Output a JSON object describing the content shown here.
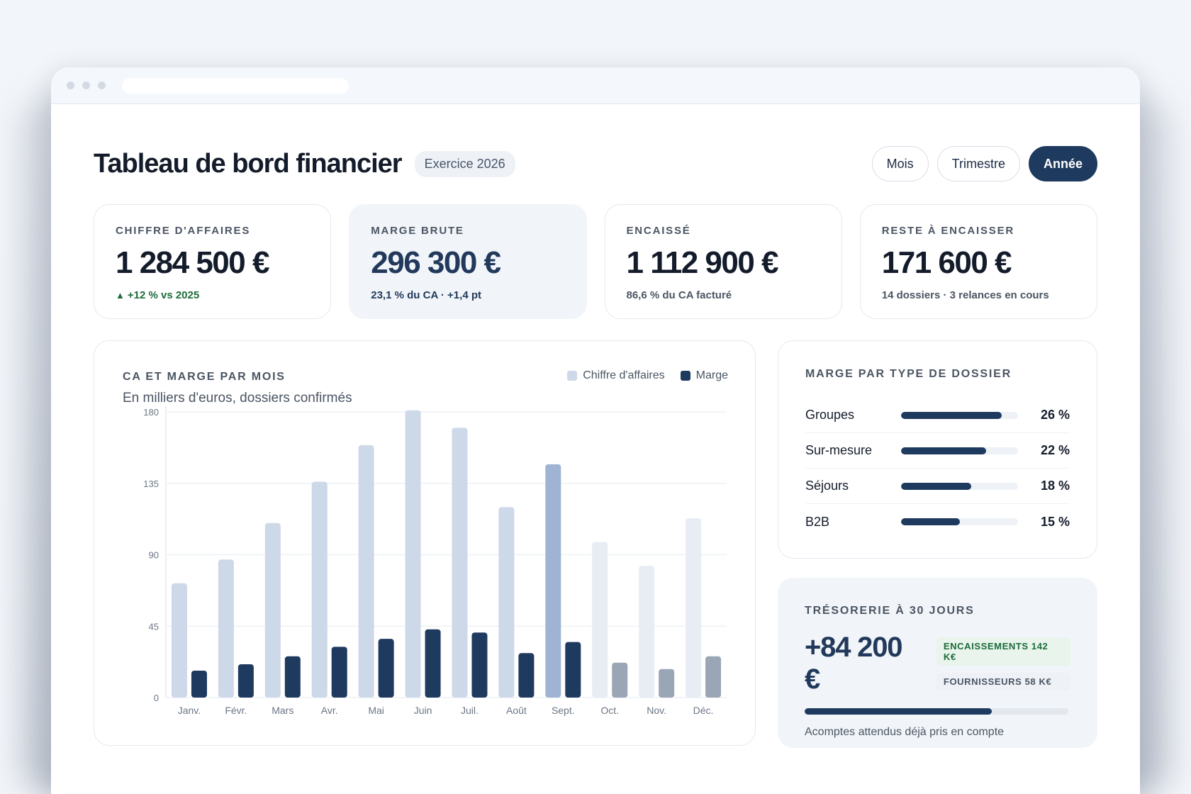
{
  "header": {
    "title": "Tableau de bord financier",
    "badge": "Exercice 2026",
    "periods": [
      "Mois",
      "Trimestre",
      "Année"
    ],
    "active_period": "Année"
  },
  "kpis": [
    {
      "label": "CHIFFRE D'AFFAIRES",
      "value": "1 284 500 €",
      "sub": "+12 % vs 2025",
      "trend": "up"
    },
    {
      "label": "MARGE BRUTE",
      "value": "296 300 €",
      "sub": "23,1 % du CA · +1,4 pt"
    },
    {
      "label": "ENCAISSÉ",
      "value": "1 112 900 €",
      "sub": "86,6 % du CA facturé"
    },
    {
      "label": "RESTE À ENCAISSER",
      "value": "171 600 €",
      "sub": "14 dossiers · 3 relances en cours"
    }
  ],
  "chart_card": {
    "title": "CA ET MARGE PAR MOIS",
    "subtitle": "En milliers d'euros, dossiers confirmés",
    "legend": [
      "Chiffre d'affaires",
      "Marge"
    ]
  },
  "chart_data": {
    "type": "bar",
    "categories": [
      "Janv.",
      "Févr.",
      "Mars",
      "Avr.",
      "Mai",
      "Juin",
      "Juil.",
      "Août",
      "Sept.",
      "Oct.",
      "Nov.",
      "Déc."
    ],
    "series": [
      {
        "name": "Chiffre d'affaires",
        "values": [
          72,
          87,
          110,
          136,
          159,
          181,
          170,
          120,
          147,
          98,
          83,
          113
        ]
      },
      {
        "name": "Marge",
        "values": [
          17,
          21,
          26,
          32,
          37,
          43,
          41,
          28,
          35,
          22,
          18,
          26
        ]
      }
    ],
    "ylim": [
      0,
      180
    ],
    "yticks": [
      "0",
      "45",
      "90",
      "135",
      "180"
    ],
    "colors": {
      "ca_past": "#cdd9e8",
      "ca_current": "#9fb4d2",
      "ca_forecast": "#e8edf4",
      "marge_past": "#1f3a5f",
      "marge_forecast": "#9aa6b6"
    },
    "grid": true,
    "legend_position": "top-right"
  },
  "type_card": {
    "title": "MARGE PAR TYPE DE DOSSIER",
    "rows": [
      {
        "name": "Groupes",
        "pct_label": "26 %",
        "fill": 0.86
      },
      {
        "name": "Sur-mesure",
        "pct_label": "22 %",
        "fill": 0.73
      },
      {
        "name": "Séjours",
        "pct_label": "18 %",
        "fill": 0.6
      },
      {
        "name": "B2B",
        "pct_label": "15 %",
        "fill": 0.5
      }
    ]
  },
  "cash_card": {
    "title": "TRÉSORERIE À 30 JOURS",
    "value": "+84 200 €",
    "tag_in": "ENCAISSEMENTS 142 K€",
    "tag_out": "FOURNISSEURS 58 K€",
    "progress": 0.71,
    "note": "Acomptes attendus déjà pris en compte"
  }
}
